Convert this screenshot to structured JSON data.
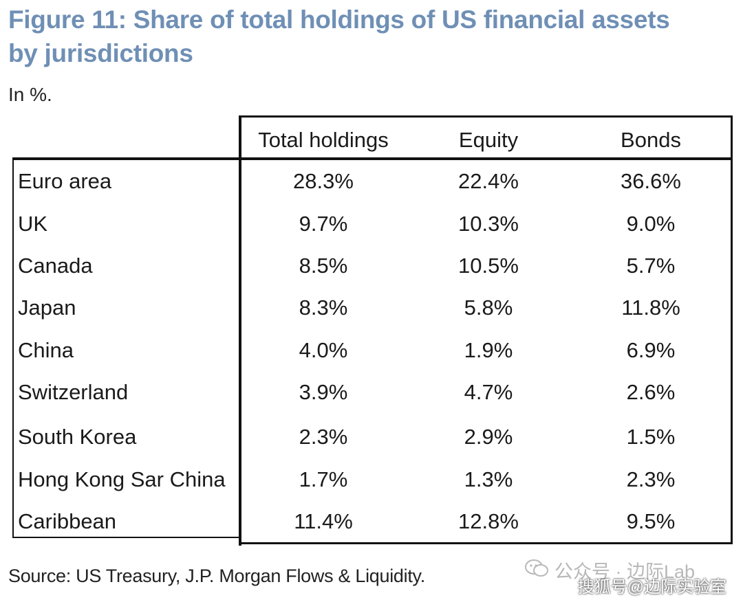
{
  "title": "Figure 11: Share of total holdings of US financial assets by jurisdictions",
  "subtitle": "In %.",
  "source": "Source: US Treasury, J.P. Morgan Flows & Liquidity.",
  "watermark": {
    "top": "公众号 · 边际Lab",
    "bottom": "搜狐号@边际实验室"
  },
  "chart_data": {
    "type": "table",
    "title": "Figure 11: Share of total holdings of US financial assets by jurisdictions",
    "unit": "In %.",
    "columns": [
      "Total holdings",
      "Equity",
      "Bonds"
    ],
    "rows": [
      {
        "label": "Euro area",
        "values": [
          "28.3%",
          "22.4%",
          "36.6%"
        ]
      },
      {
        "label": "UK",
        "values": [
          "9.7%",
          "10.3%",
          "9.0%"
        ]
      },
      {
        "label": "Canada",
        "values": [
          "8.5%",
          "10.5%",
          "5.7%"
        ]
      },
      {
        "label": "Japan",
        "values": [
          "8.3%",
          "5.8%",
          "11.8%"
        ]
      },
      {
        "label": "China",
        "values": [
          "4.0%",
          "1.9%",
          "6.9%"
        ]
      },
      {
        "label": "Switzerland",
        "values": [
          "3.9%",
          "4.7%",
          "2.6%"
        ]
      },
      {
        "label": "South Korea",
        "values": [
          "2.3%",
          "2.9%",
          "1.5%"
        ]
      },
      {
        "label": "Hong Kong Sar  China",
        "values": [
          "1.7%",
          "1.3%",
          "2.3%"
        ]
      },
      {
        "label": "Caribbean",
        "values": [
          "11.4%",
          "12.8%",
          "9.5%"
        ]
      }
    ]
  }
}
